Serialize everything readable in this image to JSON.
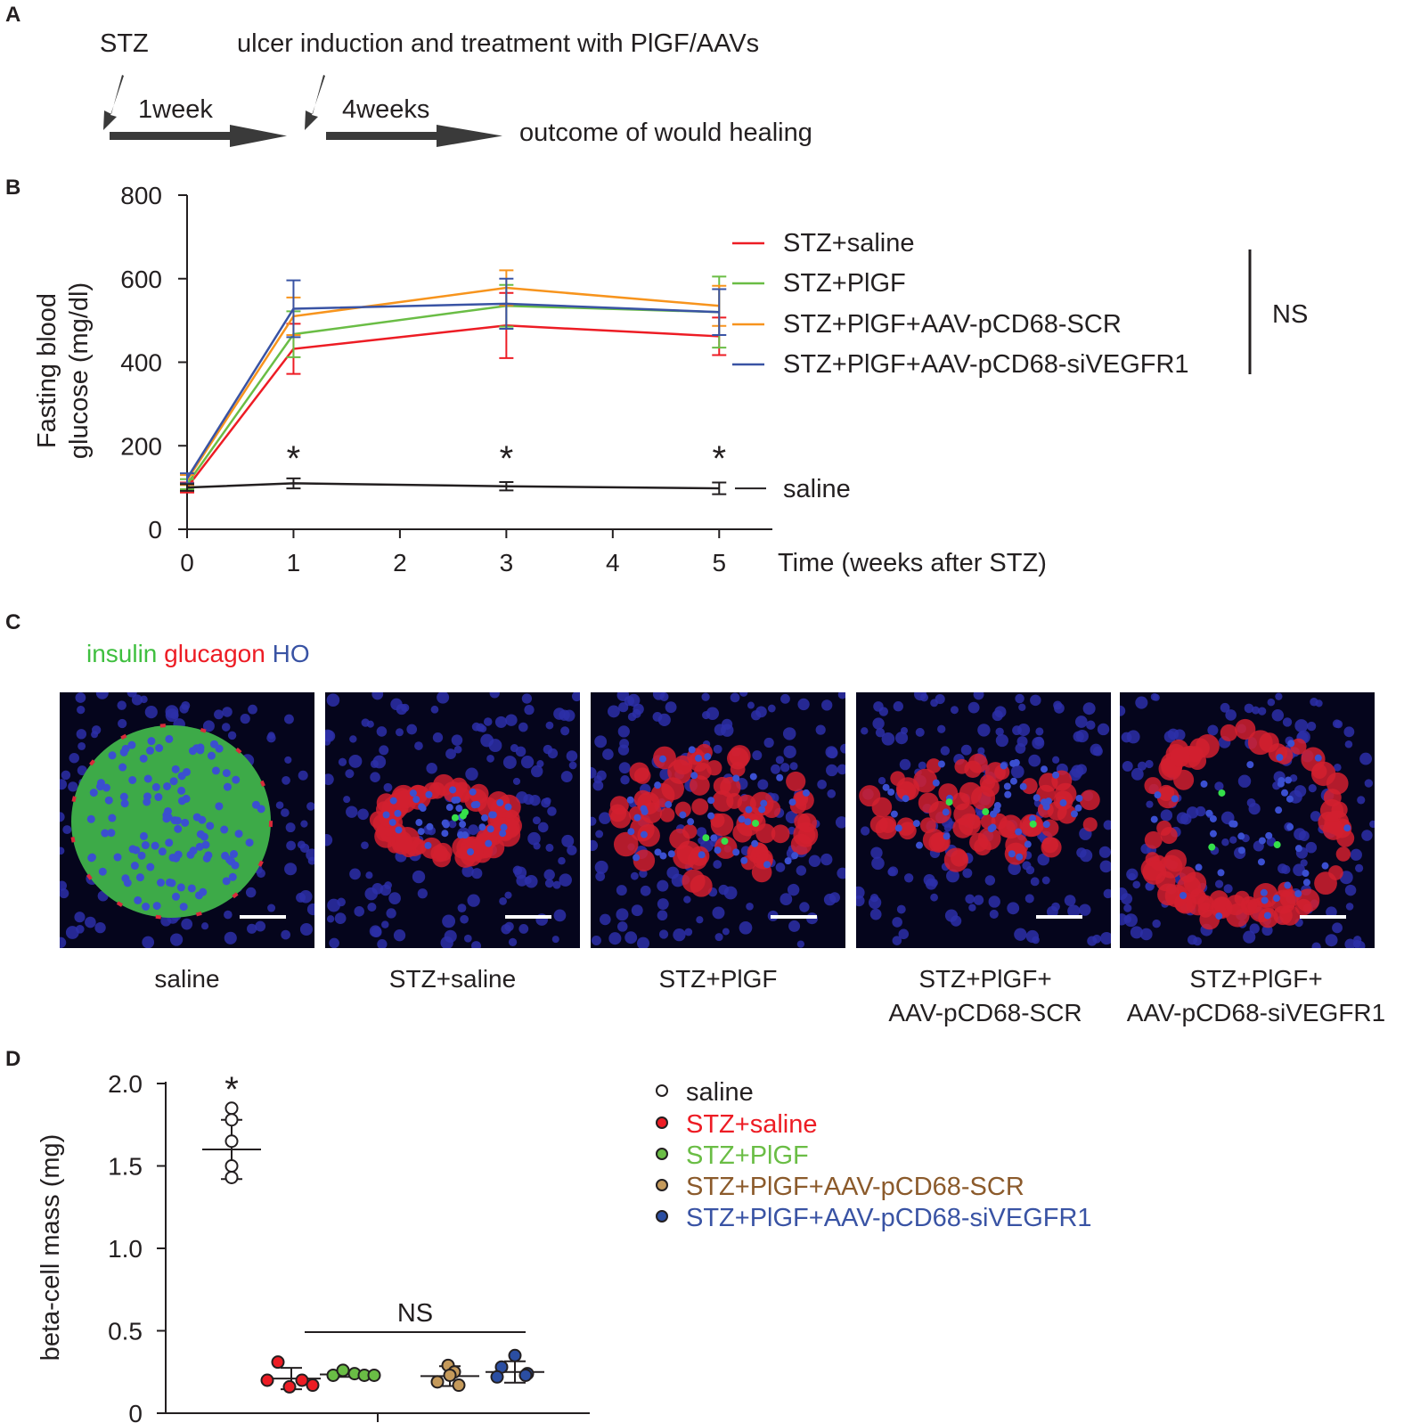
{
  "panels": {
    "A": {
      "letter": "A",
      "stz_label": "STZ",
      "interval1": "1week",
      "ulcer_label": "ulcer induction and treatment with PlGF/AAVs",
      "interval2": "4weeks",
      "outcome_label": "outcome of would healing"
    },
    "B": {
      "letter": "B"
    },
    "C": {
      "letter": "C",
      "stain_insulin": "insulin",
      "stain_glucagon": "glucagon",
      "stain_ho": "HO",
      "captions": [
        [
          "saline"
        ],
        [
          "STZ+saline"
        ],
        [
          "STZ+PlGF"
        ],
        [
          "STZ+PlGF+",
          "AAV-pCD68-SCR"
        ],
        [
          "STZ+PlGF+",
          "AAV-pCD68-siVEGFR1"
        ]
      ]
    },
    "D": {
      "letter": "D"
    }
  },
  "colors": {
    "saline": "#231f20",
    "stz_saline": "#ed1c24",
    "stz_plgf": "#6abd45",
    "stz_plgf_scr": "#f7941d",
    "stz_plgf_sivegfr1": "#3953a4",
    "scr_dot": "#c59a5b",
    "scr_text": "#8b5a2b",
    "sivegfr1_dot": "#2b4ea2"
  },
  "chart_data": [
    {
      "type": "line",
      "ylabel": [
        "Fasting blood",
        "glucose (mg/dl)"
      ],
      "xlabel": "Time (weeks after STZ)",
      "xlim": [
        0,
        5.5
      ],
      "ylim": [
        0,
        800
      ],
      "xticks": [
        0,
        1,
        2,
        3,
        4,
        5
      ],
      "yticks": [
        0,
        200,
        400,
        600,
        800
      ],
      "x": [
        0,
        1,
        3,
        5
      ],
      "series": [
        {
          "name": "STZ+saline",
          "key": "stz_saline",
          "values": [
            100,
            432,
            488,
            462
          ],
          "err": [
            12,
            60,
            78,
            45
          ]
        },
        {
          "name": "STZ+PlGF",
          "key": "stz_plgf",
          "values": [
            108,
            467,
            535,
            520
          ],
          "err": [
            12,
            55,
            50,
            85
          ]
        },
        {
          "name": "STZ+PlGF+AAV-pCD68-SCR",
          "key": "stz_plgf_scr",
          "values": [
            118,
            510,
            578,
            535
          ],
          "err": [
            12,
            45,
            42,
            48
          ]
        },
        {
          "name": "STZ+PlGF+AAV-pCD68-siVEGFR1",
          "key": "stz_plgf_sivegfr1",
          "values": [
            122,
            528,
            540,
            520
          ],
          "err": [
            12,
            68,
            60,
            55
          ]
        },
        {
          "name": "saline",
          "key": "saline",
          "values": [
            100,
            110,
            103,
            98
          ],
          "err": [
            8,
            12,
            10,
            14
          ]
        }
      ],
      "significance": {
        "x": [
          1,
          3,
          5
        ],
        "symbol": "*"
      },
      "ns_label": "NS"
    },
    {
      "type": "scatter",
      "ylabel": "beta-cell mass (mg)",
      "ylim": [
        0,
        2.0
      ],
      "yticks": [
        "0",
        "0.5",
        "1.0",
        "1.5",
        "2.0"
      ],
      "groups": [
        {
          "name": "saline",
          "key": "saline",
          "fill": "#ffffff",
          "points": [
            1.85,
            1.78,
            1.65,
            1.5,
            1.43
          ],
          "mean": 1.6,
          "sd": 0.18
        },
        {
          "name": "STZ+saline",
          "key": "stz_saline",
          "fill": "#ed1c24",
          "points": [
            0.31,
            0.2,
            0.16,
            0.2,
            0.17
          ],
          "mean": 0.21,
          "sd": 0.065
        },
        {
          "name": "STZ+PlGF",
          "key": "stz_plgf",
          "fill": "#6abd45",
          "points": [
            0.23,
            0.26,
            0.24,
            0.23,
            0.23
          ],
          "mean": 0.235,
          "sd": 0.015
        },
        {
          "name": "STZ+PlGF+AAV-pCD68-SCR",
          "key": "scr",
          "fill": "#c59a5b",
          "points": [
            0.29,
            0.25,
            0.19,
            0.17,
            0.23
          ],
          "mean": 0.225,
          "sd": 0.06
        },
        {
          "name": "STZ+PlGF+AAV-pCD68-siVEGFR1",
          "key": "sivegfr1",
          "fill": "#2b4ea2",
          "points": [
            0.35,
            0.28,
            0.24,
            0.22,
            0.23
          ],
          "mean": 0.25,
          "sd": 0.065
        }
      ],
      "legend": [
        {
          "label": "saline",
          "dot": "#ffffff",
          "text": "#231f20"
        },
        {
          "label": "STZ+saline",
          "dot": "#ed1c24",
          "text": "#ed1c24"
        },
        {
          "label": "STZ+PlGF",
          "dot": "#6abd45",
          "text": "#6abd45"
        },
        {
          "label": "STZ+PlGF+AAV-pCD68-SCR",
          "dot": "#c59a5b",
          "text": "#8b5a2b"
        },
        {
          "label": "STZ+PlGF+AAV-pCD68-siVEGFR1",
          "dot": "#2b4ea2",
          "text": "#3953a4"
        }
      ],
      "significance_symbol": "*",
      "ns_label": "NS"
    }
  ]
}
